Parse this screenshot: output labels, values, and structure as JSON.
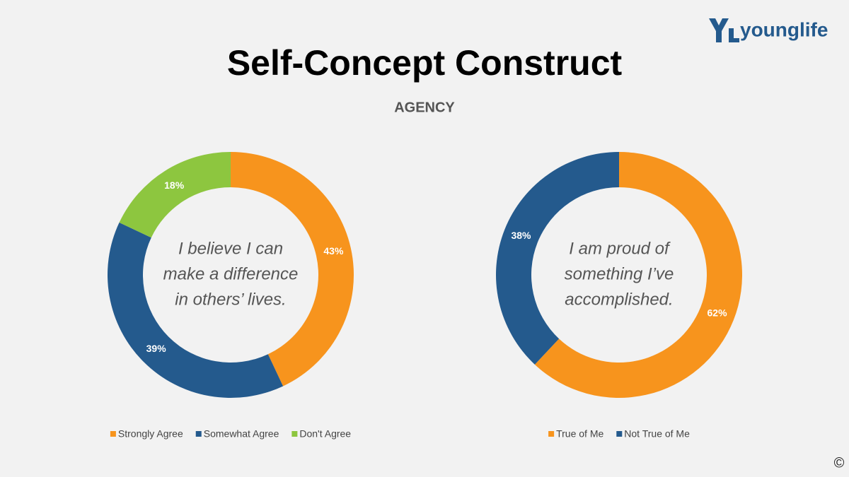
{
  "title": "Self-Concept Construct",
  "subtitle": "AGENCY",
  "logo": "younglife",
  "copyright": "©",
  "chart_data": [
    {
      "type": "donut",
      "center_text": [
        "I believe I can",
        "make a difference",
        "in others’ lives."
      ],
      "categories": [
        "Strongly Agree",
        "Somewhat Agree",
        "Don't Agree"
      ],
      "values": [
        43,
        39,
        18
      ],
      "value_labels": [
        "43%",
        "39%",
        "18%"
      ],
      "colors": [
        "#f7941d",
        "#245a8d",
        "#8dc63f"
      ]
    },
    {
      "type": "donut",
      "center_text": [
        "I am proud of",
        "something I’ve",
        "accomplished."
      ],
      "categories": [
        "True of Me",
        "Not True of Me"
      ],
      "values": [
        62,
        38
      ],
      "value_labels": [
        "62%",
        "38%"
      ],
      "colors": [
        "#f7941d",
        "#245a8d"
      ]
    }
  ]
}
